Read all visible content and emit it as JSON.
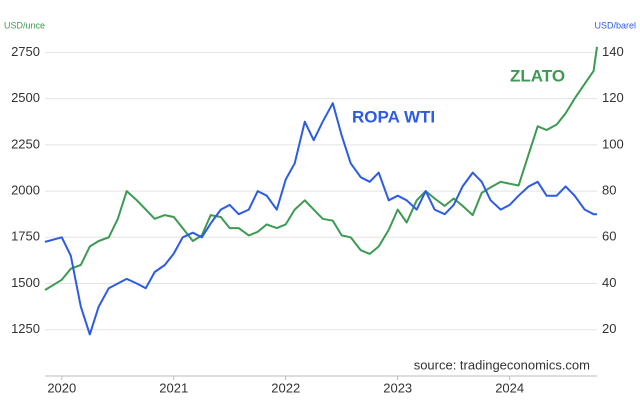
{
  "chart_data": {
    "type": "line",
    "axis_label_left": "USD/unce",
    "axis_label_right": "USD/barel",
    "source": "source: tradingeconomics.com",
    "x": [
      2019.85,
      2020.0,
      2020.08,
      2020.17,
      2020.25,
      2020.33,
      2020.42,
      2020.5,
      2020.58,
      2020.67,
      2020.75,
      2020.83,
      2020.92,
      2021.0,
      2021.08,
      2021.17,
      2021.25,
      2021.33,
      2021.42,
      2021.5,
      2021.58,
      2021.67,
      2021.75,
      2021.83,
      2021.92,
      2022.0,
      2022.08,
      2022.17,
      2022.25,
      2022.33,
      2022.42,
      2022.5,
      2022.58,
      2022.67,
      2022.75,
      2022.83,
      2022.92,
      2023.0,
      2023.08,
      2023.17,
      2023.25,
      2023.33,
      2023.42,
      2023.5,
      2023.58,
      2023.67,
      2023.75,
      2023.83,
      2023.92,
      2024.0,
      2024.08,
      2024.17,
      2024.25,
      2024.33,
      2024.42,
      2024.5,
      2024.58,
      2024.67,
      2024.75,
      2024.78
    ],
    "series": [
      {
        "name": "ZLATO",
        "color": "#3d9a52",
        "axis": "y",
        "values": [
          1465,
          1520,
          1580,
          1600,
          1700,
          1730,
          1750,
          1850,
          2000,
          1950,
          1900,
          1850,
          1870,
          1860,
          1800,
          1730,
          1760,
          1870,
          1860,
          1800,
          1800,
          1760,
          1780,
          1820,
          1800,
          1820,
          1900,
          1950,
          1900,
          1850,
          1840,
          1760,
          1750,
          1680,
          1660,
          1700,
          1790,
          1900,
          1830,
          1950,
          2000,
          1960,
          1920,
          1960,
          1920,
          1870,
          1990,
          2020,
          2050,
          2040,
          2030,
          2200,
          2350,
          2330,
          2360,
          2420,
          2500,
          2580,
          2650,
          2780
        ]
      },
      {
        "name": "ROPA WTI",
        "color": "#2d5be3",
        "axis": "y2",
        "values": [
          58,
          60,
          52,
          30,
          18,
          30,
          38,
          40,
          42,
          40,
          38,
          45,
          48,
          53,
          60,
          62,
          60,
          66,
          72,
          74,
          70,
          72,
          80,
          78,
          72,
          85,
          92,
          110,
          102,
          110,
          118,
          104,
          92,
          86,
          84,
          88,
          76,
          78,
          76,
          72,
          80,
          72,
          70,
          74,
          82,
          88,
          84,
          76,
          72,
          74,
          78,
          82,
          84,
          78,
          78,
          82,
          78,
          72,
          70,
          70
        ]
      }
    ],
    "xlim": [
      2019.85,
      2024.78
    ],
    "xticks": [
      2020,
      2021,
      2022,
      2023,
      2024
    ],
    "ylim": [
      1000,
      2925
    ],
    "yticks": [
      1250,
      1500,
      1750,
      2000,
      2250,
      2500,
      2750
    ],
    "y2lim": [
      0,
      154
    ],
    "y2ticks": [
      20,
      40,
      60,
      80,
      100,
      120,
      140
    ],
    "grid": true
  }
}
